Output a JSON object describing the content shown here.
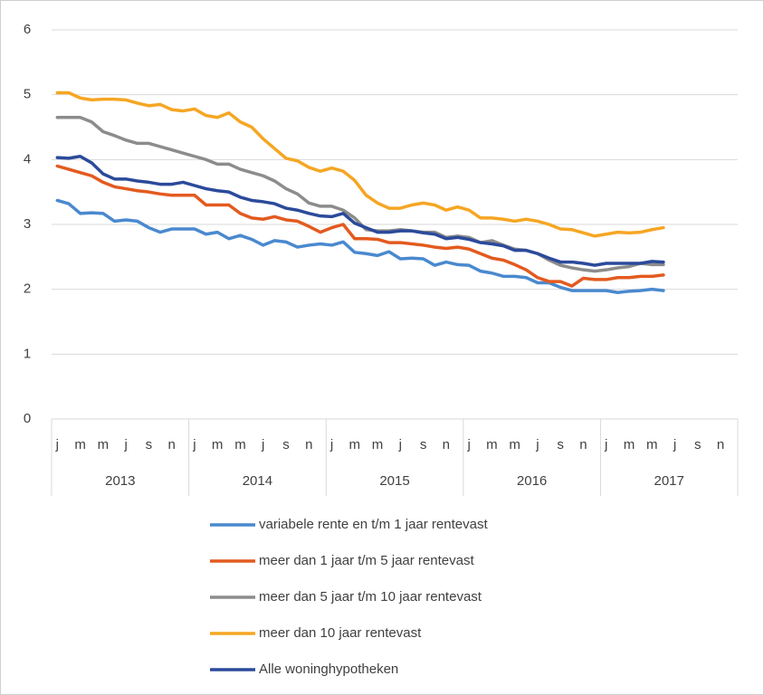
{
  "chart_data": {
    "type": "line",
    "categories": [
      "j",
      null,
      "m",
      null,
      "m",
      null,
      "j",
      null,
      "s",
      null,
      "n",
      null,
      "j",
      null,
      "m",
      null,
      "m",
      null,
      "j",
      null,
      "s",
      null,
      "n",
      null,
      "j",
      null,
      "m",
      null,
      "m",
      null,
      "j",
      null,
      "s",
      null,
      "n",
      null,
      "j",
      null,
      "m",
      null,
      "m",
      null,
      "j",
      null,
      "s",
      null,
      "n",
      null,
      "j",
      null,
      "m",
      null,
      "m",
      null,
      "j",
      null,
      "s",
      null,
      "n",
      null
    ],
    "years": [
      "2013",
      "2014",
      "2015",
      "2016",
      "2017"
    ],
    "ylim": [
      0,
      6
    ],
    "yticks": [
      0,
      1,
      2,
      3,
      4,
      5,
      6
    ],
    "grid": true,
    "series": [
      {
        "name": "variabele rente en t/m 1 jaar rentevast",
        "color": "#4a89cf",
        "values": [
          3.37,
          3.32,
          3.17,
          3.18,
          3.17,
          3.05,
          3.07,
          3.05,
          2.95,
          2.88,
          2.93,
          2.93,
          2.93,
          2.85,
          2.88,
          2.78,
          2.83,
          2.77,
          2.68,
          2.75,
          2.73,
          2.65,
          2.68,
          2.7,
          2.68,
          2.73,
          2.57,
          2.55,
          2.52,
          2.58,
          2.47,
          2.48,
          2.47,
          2.37,
          2.42,
          2.38,
          2.37,
          2.28,
          2.25,
          2.2,
          2.2,
          2.18,
          2.1,
          2.1,
          2.03,
          1.98,
          1.98,
          1.98,
          1.98,
          1.95,
          1.97,
          1.98,
          2.0,
          1.98,
          null,
          null,
          null,
          null,
          null,
          null
        ]
      },
      {
        "name": "meer dan 1 jaar t/m 5 jaar rentevast",
        "color": "#e35a1f",
        "values": [
          3.9,
          3.85,
          3.8,
          3.75,
          3.65,
          3.58,
          3.55,
          3.52,
          3.5,
          3.47,
          3.45,
          3.45,
          3.45,
          3.3,
          3.3,
          3.3,
          3.17,
          3.1,
          3.08,
          3.12,
          3.07,
          3.05,
          2.97,
          2.88,
          2.95,
          3.0,
          2.78,
          2.78,
          2.77,
          2.72,
          2.72,
          2.7,
          2.68,
          2.65,
          2.63,
          2.65,
          2.62,
          2.55,
          2.48,
          2.45,
          2.38,
          2.3,
          2.18,
          2.12,
          2.12,
          2.05,
          2.17,
          2.15,
          2.15,
          2.18,
          2.18,
          2.2,
          2.2,
          2.22,
          null,
          null,
          null,
          null,
          null,
          null
        ]
      },
      {
        "name": "meer dan 5 jaar t/m 10 jaar rentevast",
        "color": "#8c8c8c",
        "values": [
          4.65,
          4.65,
          4.65,
          4.58,
          4.43,
          4.37,
          4.3,
          4.25,
          4.25,
          4.2,
          4.15,
          4.1,
          4.05,
          4.0,
          3.93,
          3.93,
          3.85,
          3.8,
          3.75,
          3.67,
          3.55,
          3.47,
          3.33,
          3.28,
          3.28,
          3.22,
          3.1,
          2.92,
          2.9,
          2.9,
          2.92,
          2.9,
          2.88,
          2.88,
          2.8,
          2.82,
          2.8,
          2.72,
          2.75,
          2.68,
          2.62,
          2.6,
          2.55,
          2.45,
          2.37,
          2.33,
          2.3,
          2.28,
          2.3,
          2.33,
          2.35,
          2.4,
          2.38,
          2.38,
          null,
          null,
          null,
          null,
          null,
          null
        ]
      },
      {
        "name": "meer dan 10 jaar rentevast",
        "color": "#f5a623",
        "values": [
          5.03,
          5.03,
          4.95,
          4.92,
          4.93,
          4.93,
          4.92,
          4.87,
          4.83,
          4.85,
          4.77,
          4.75,
          4.78,
          4.68,
          4.65,
          4.72,
          4.58,
          4.5,
          4.32,
          4.17,
          4.02,
          3.98,
          3.88,
          3.82,
          3.87,
          3.82,
          3.68,
          3.45,
          3.33,
          3.25,
          3.25,
          3.3,
          3.33,
          3.3,
          3.22,
          3.27,
          3.22,
          3.1,
          3.1,
          3.08,
          3.05,
          3.08,
          3.05,
          3.0,
          2.93,
          2.92,
          2.87,
          2.82,
          2.85,
          2.88,
          2.87,
          2.88,
          2.92,
          2.95,
          null,
          null,
          null,
          null,
          null,
          null
        ]
      },
      {
        "name": "Alle woninghypotheken",
        "color": "#2b4a9b",
        "values": [
          4.03,
          4.02,
          4.05,
          3.95,
          3.78,
          3.7,
          3.7,
          3.67,
          3.65,
          3.62,
          3.62,
          3.65,
          3.6,
          3.55,
          3.52,
          3.5,
          3.42,
          3.37,
          3.35,
          3.32,
          3.25,
          3.22,
          3.17,
          3.13,
          3.12,
          3.17,
          3.02,
          2.95,
          2.88,
          2.88,
          2.9,
          2.9,
          2.87,
          2.85,
          2.78,
          2.8,
          2.77,
          2.72,
          2.7,
          2.67,
          2.6,
          2.6,
          2.55,
          2.48,
          2.42,
          2.42,
          2.4,
          2.37,
          2.4,
          2.4,
          2.4,
          2.4,
          2.43,
          2.42,
          null,
          null,
          null,
          null,
          null,
          null
        ]
      }
    ]
  }
}
